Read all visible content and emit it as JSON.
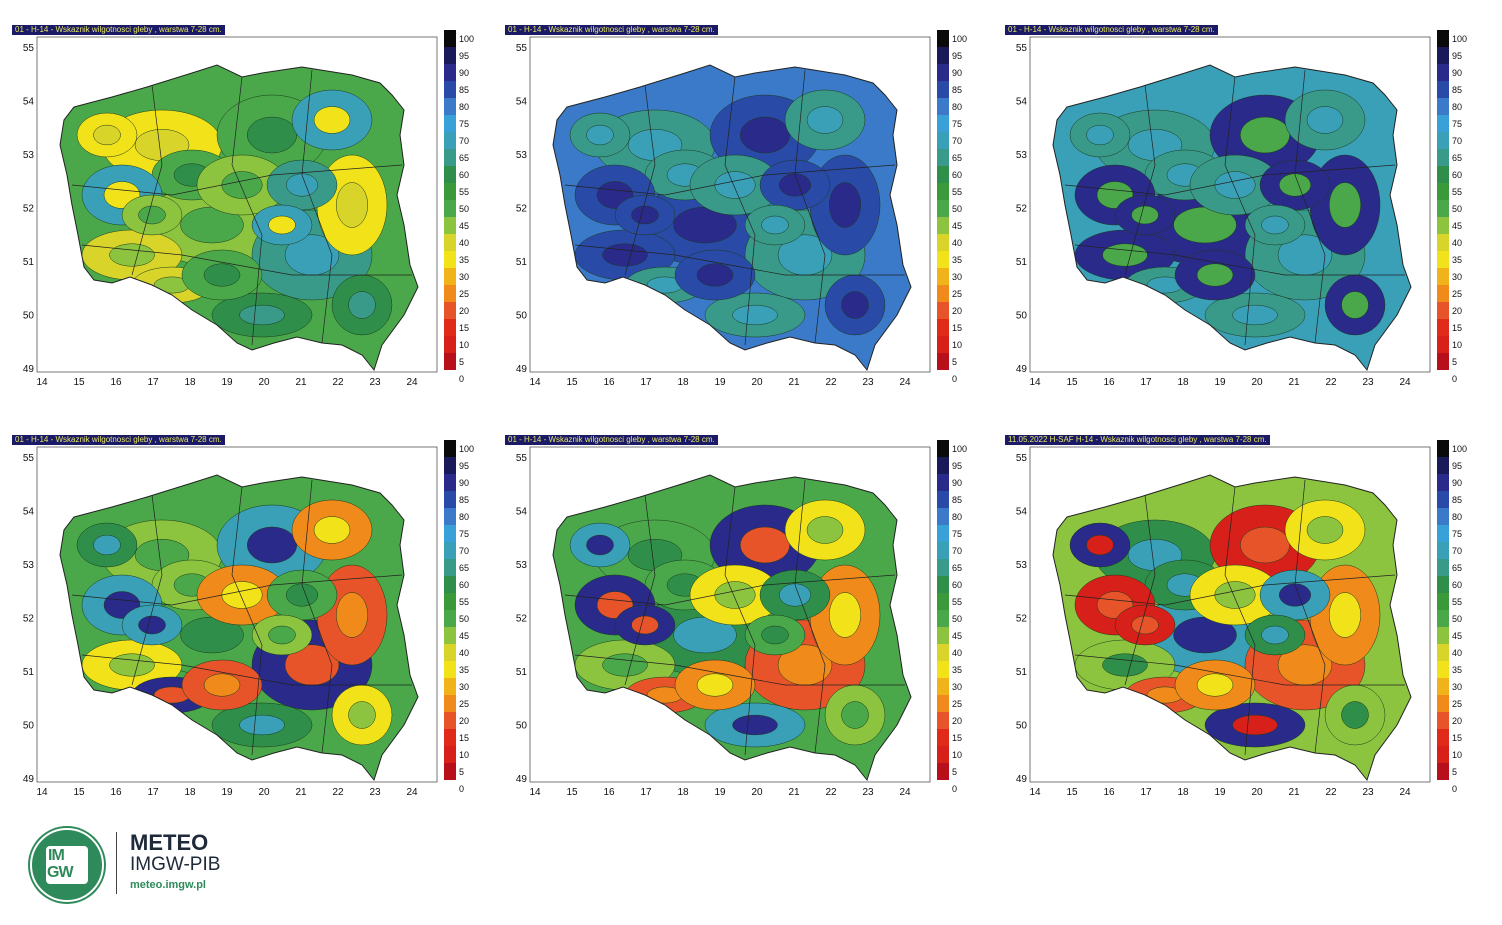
{
  "panels": [
    {
      "title": "01 - H-14 - Wskaznik wilgotnosci gleby , warstwa 7-28 cm.",
      "palette": [
        "#f2e21a",
        "#d8d42a",
        "#8dc43f",
        "#4aa84a",
        "#2f8f4a",
        "#3a9a8a",
        "#3aa0b8"
      ]
    },
    {
      "title": "01 - H-14 - Wskaznik wilgotnosci gleby , warstwa 7-28 cm.",
      "palette": [
        "#2f8f4a",
        "#3a9a8a",
        "#3aa0b8",
        "#3a7ac8",
        "#2a4aa8",
        "#2a2a8a"
      ]
    },
    {
      "title": "01 - H-14 - Wskaznik wilgotnosci gleby , warstwa 7-28 cm.",
      "palette": [
        "#4aa84a",
        "#2f8f4a",
        "#3a9a8a",
        "#3aa0b8",
        "#3a7ac8",
        "#2a2a8a"
      ]
    },
    {
      "title": "01 - H-14 - Wskaznik wilgotnosci gleby , warstwa 7-28 cm.",
      "palette": [
        "#e8542a",
        "#f08a1a",
        "#f2e21a",
        "#8dc43f",
        "#4aa84a",
        "#2f8f4a",
        "#3aa0b8",
        "#2a2a8a"
      ]
    },
    {
      "title": "01 - H-14 - Wskaznik wilgotnosci gleby , warstwa 7-28 cm.",
      "palette": [
        "#e8542a",
        "#f08a1a",
        "#f2e21a",
        "#8dc43f",
        "#4aa84a",
        "#2f8f4a",
        "#3aa0b8",
        "#2a2a8a"
      ]
    },
    {
      "title": "11.05.2022 H-SAF H-14 - Wskaznik wilgotnosci gleby , warstwa 7-28 cm.",
      "palette": [
        "#d8201a",
        "#e8542a",
        "#f08a1a",
        "#f2e21a",
        "#8dc43f",
        "#2f8f4a",
        "#3aa0b8",
        "#2a2a8a"
      ]
    }
  ],
  "legend": {
    "labels": [
      "100",
      "95",
      "90",
      "85",
      "80",
      "75",
      "70",
      "65",
      "60",
      "55",
      "50",
      "45",
      "40",
      "35",
      "30",
      "25",
      "20",
      "15",
      "10",
      "5",
      "0"
    ],
    "colors": [
      "#0a0a0a",
      "#1a1a5a",
      "#2a2a8a",
      "#2a4aa8",
      "#3a7ac8",
      "#3aa0d8",
      "#3aa0b8",
      "#3a9a8a",
      "#2f8f4a",
      "#3a9a3a",
      "#4aa84a",
      "#8dc43f",
      "#d8d42a",
      "#f2e21a",
      "#f0b41a",
      "#f08a1a",
      "#e8542a",
      "#e02a1a",
      "#d8201a",
      "#b8101a"
    ]
  },
  "axes": {
    "x_ticks": [
      "14",
      "15",
      "16",
      "17",
      "18",
      "19",
      "20",
      "21",
      "22",
      "23",
      "24"
    ],
    "y_ticks": [
      "55",
      "54",
      "53",
      "52",
      "51",
      "50",
      "49"
    ]
  },
  "logo": {
    "brand": "METEO",
    "org": "IMGW-PIB",
    "url": "meteo.imgw.pl",
    "badge_top": "IM",
    "badge_bottom": "GW"
  }
}
